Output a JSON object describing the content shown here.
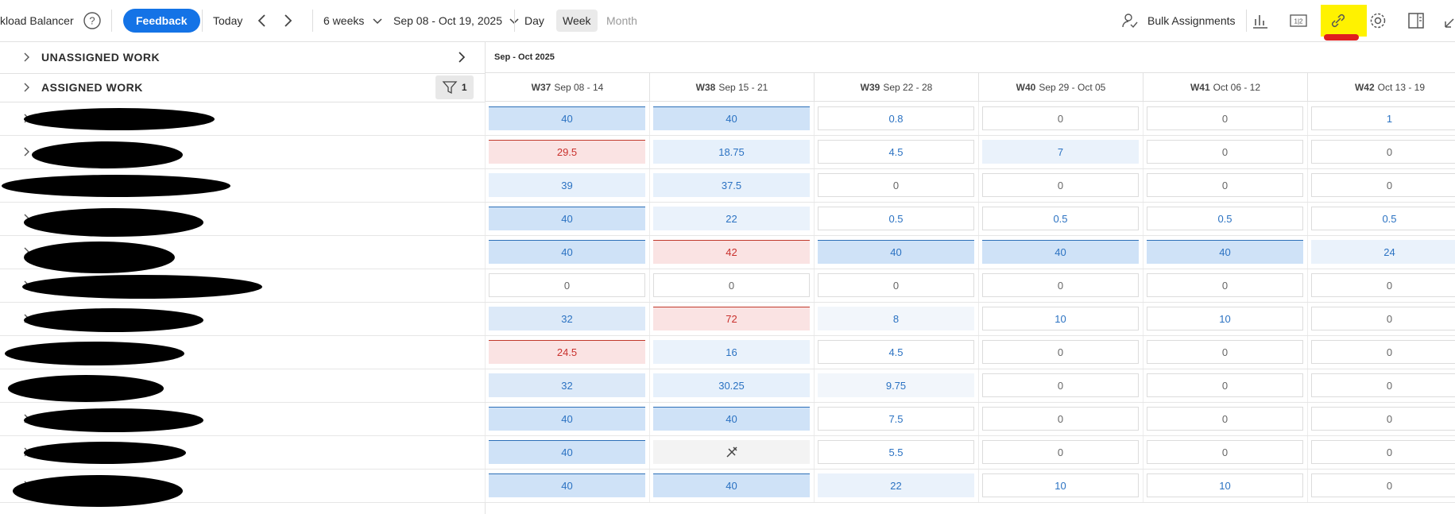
{
  "toolbar": {
    "app_title": "kload Balancer",
    "feedback": "Feedback",
    "today": "Today",
    "range": "6 weeks",
    "dates": "Sep 08 - Oct 19, 2025",
    "views": [
      "Day",
      "Week",
      "Month"
    ],
    "bulk": "Bulk Assignments"
  },
  "panel": {
    "unassigned": "UNASSIGNED WORK",
    "assigned": "ASSIGNED WORK",
    "filter_count": "1",
    "period": "Sep - Oct 2025"
  },
  "weeks": [
    {
      "week": "W37",
      "dates": "Sep 08 - 14"
    },
    {
      "week": "W38",
      "dates": "Sep 15 - 21"
    },
    {
      "week": "W39",
      "dates": "Sep 22 - 28"
    },
    {
      "week": "W40",
      "dates": "Sep 29 - Oct 05"
    },
    {
      "week": "W41",
      "dates": "Oct 06 - 12"
    },
    {
      "week": "W42",
      "dates": "Oct 13 - 19"
    }
  ],
  "rows": [
    {
      "values": [
        40,
        40,
        0.8,
        0,
        0,
        1
      ],
      "colors": [
        "#cfe2f7",
        "#cfe2f7",
        "#ffffff",
        "#ffffff",
        "#ffffff",
        "#ffffff"
      ]
    },
    {
      "values": [
        29.5,
        18.75,
        4.5,
        7,
        0,
        0
      ],
      "colors": [
        "#fae3e3",
        "#e6f0fb",
        "#ffffff",
        "#eaf2fb",
        "#ffffff",
        "#ffffff"
      ]
    },
    {
      "values": [
        39,
        37.5,
        0,
        0,
        0,
        0
      ],
      "colors": [
        "#e6f0fb",
        "#e6f0fb",
        "#ffffff",
        "#ffffff",
        "#ffffff",
        "#ffffff"
      ]
    },
    {
      "values": [
        40,
        22,
        0.5,
        0.5,
        0.5,
        0.5
      ],
      "colors": [
        "#cfe2f7",
        "#eaf2fb",
        "#ffffff",
        "#ffffff",
        "#ffffff",
        "#ffffff"
      ]
    },
    {
      "values": [
        40,
        42,
        40,
        40,
        40,
        24
      ],
      "colors": [
        "#cfe2f7",
        "#fae3e3",
        "#cfe2f7",
        "#cfe2f7",
        "#cfe2f7",
        "#eaf2fb"
      ]
    },
    {
      "values": [
        0,
        0,
        0,
        0,
        0,
        0
      ],
      "colors": [
        "#ffffff",
        "#ffffff",
        "#ffffff",
        "#ffffff",
        "#ffffff",
        "#ffffff"
      ]
    },
    {
      "values": [
        32,
        72,
        8,
        10,
        10,
        0
      ],
      "colors": [
        "#dce9f8",
        "#fae3e3",
        "#f2f6fb",
        "#ffffff",
        "#ffffff",
        "#ffffff"
      ]
    },
    {
      "values": [
        24.5,
        16,
        4.5,
        0,
        0,
        0
      ],
      "colors": [
        "#fae3e3",
        "#eaf2fb",
        "#ffffff",
        "#ffffff",
        "#ffffff",
        "#ffffff"
      ]
    },
    {
      "values": [
        32,
        30.25,
        9.75,
        0,
        0,
        0
      ],
      "colors": [
        "#dce9f8",
        "#e6f0fb",
        "#f2f6fb",
        "#ffffff",
        "#ffffff",
        "#ffffff"
      ]
    },
    {
      "values": [
        40,
        40,
        7.5,
        0,
        0,
        0
      ],
      "colors": [
        "#cfe2f7",
        "#cfe2f7",
        "#ffffff",
        "#ffffff",
        "#ffffff",
        "#ffffff"
      ]
    },
    {
      "values": [
        40,
        null,
        5.5,
        0,
        0,
        0
      ],
      "colors": [
        "#cfe2f7",
        "#f3f3f3",
        "#ffffff",
        "#ffffff",
        "#ffffff",
        "#ffffff"
      ]
    },
    {
      "values": [
        40,
        40,
        22,
        10,
        10,
        0
      ],
      "colors": [
        "#cfe2f7",
        "#cfe2f7",
        "#eaf2fb",
        "#ffffff",
        "#ffffff",
        "#ffffff"
      ]
    }
  ]
}
